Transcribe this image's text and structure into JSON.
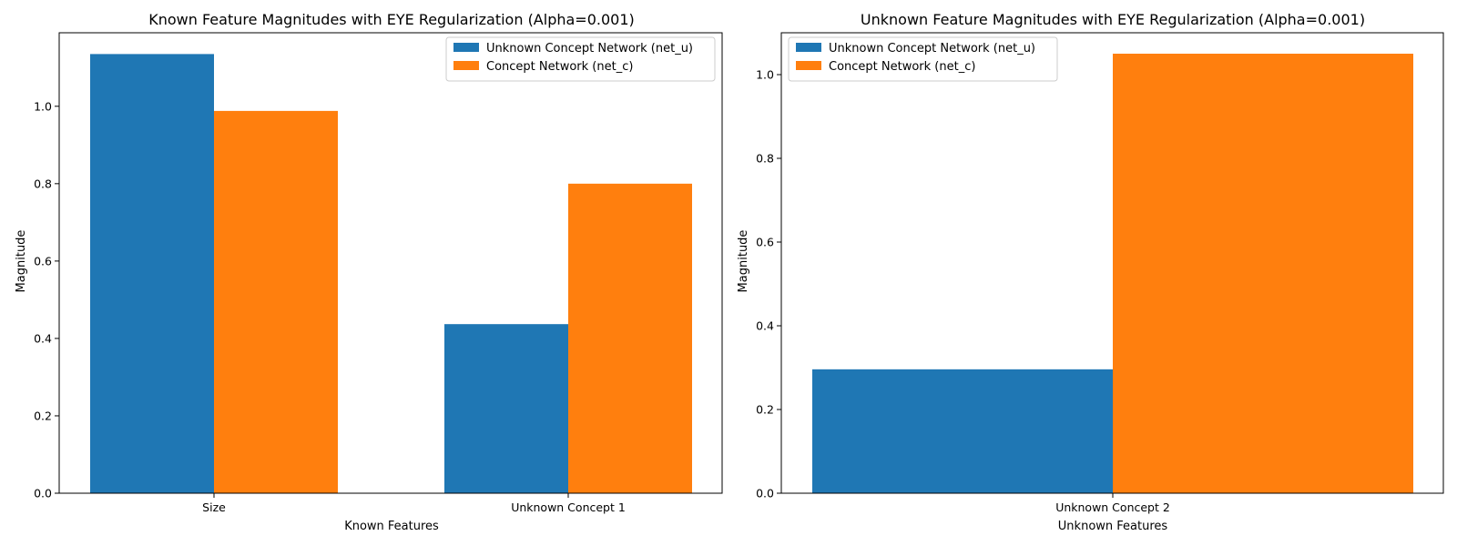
{
  "chart_data": [
    {
      "type": "bar",
      "title": "Known Feature Magnitudes with EYE Regularization (Alpha=0.001)",
      "xlabel": "Known Features",
      "ylabel": "Magnitude",
      "categories": [
        "Size",
        "Unknown Concept 1"
      ],
      "series": [
        {
          "name": "Unknown Concept Network (net_u)",
          "color": "#1f77b4",
          "values": [
            1.135,
            0.437
          ]
        },
        {
          "name": "Concept Network (net_c)",
          "color": "#ff7f0e",
          "values": [
            0.988,
            0.8
          ]
        }
      ],
      "ylim": [
        0,
        1.19
      ],
      "yticks": [
        "0.0",
        "0.2",
        "0.4",
        "0.6",
        "0.8",
        "1.0"
      ],
      "legend": "top-right",
      "grid": false
    },
    {
      "type": "bar",
      "title": "Unknown Feature Magnitudes with EYE Regularization (Alpha=0.001)",
      "xlabel": "Unknown Features",
      "ylabel": "Magnitude",
      "categories": [
        "Unknown Concept 2"
      ],
      "series": [
        {
          "name": "Unknown Concept Network (net_u)",
          "color": "#1f77b4",
          "values": [
            0.296
          ]
        },
        {
          "name": "Concept Network (net_c)",
          "color": "#ff7f0e",
          "values": [
            1.05
          ]
        }
      ],
      "ylim": [
        0,
        1.1
      ],
      "yticks": [
        "0.0",
        "0.2",
        "0.4",
        "0.6",
        "0.8",
        "1.0"
      ],
      "legend": "top-left",
      "grid": false
    }
  ]
}
